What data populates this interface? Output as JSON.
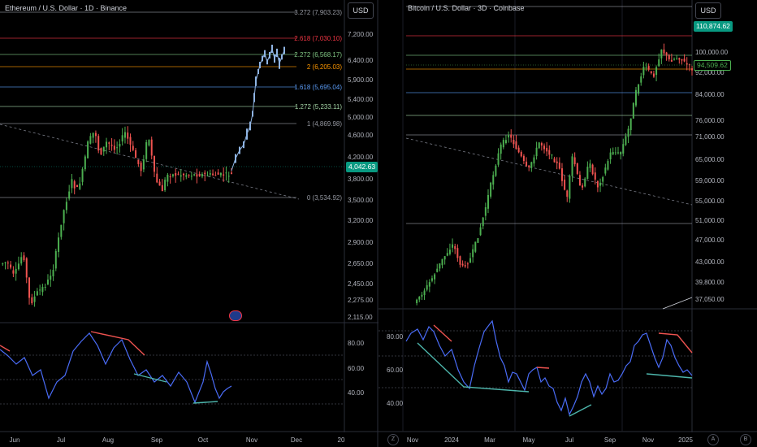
{
  "left": {
    "title": "Ethereum / U.S. Dollar · 1D · Binance",
    "currency": "USD",
    "price_axis": [
      "7,200.00",
      "6,400.00",
      "5,900.00",
      "5,400.00",
      "5,000.00",
      "4,600.00",
      "4,200.00",
      "3,800.00",
      "3,500.00",
      "3,200.00",
      "2,900.00",
      "2,650.00",
      "2,450.00",
      "2,275.00",
      "2,115.00"
    ],
    "fib_levels": [
      {
        "label": "3.272 (7,903.23)",
        "color": "#9598a1"
      },
      {
        "label": "2.618 (7,030.10)",
        "color": "#f23645"
      },
      {
        "label": "2.272 (6,568.17)",
        "color": "#81c784"
      },
      {
        "label": "2 (6,205.03)",
        "color": "#ff9800"
      },
      {
        "label": "1.618 (5,695.04)",
        "color": "#5b9cf6"
      },
      {
        "label": "1.272 (5,233.11)",
        "color": "#a5d6a7"
      },
      {
        "label": "1 (4,869.98)",
        "color": "#9598a1"
      },
      {
        "label": "0 (3,534.92)",
        "color": "#9598a1"
      }
    ],
    "current_price": "4,042.63",
    "rsi_axis": [
      "80.00",
      "60.00",
      "40.00"
    ],
    "time_axis": [
      "Jun",
      "Jul",
      "Aug",
      "Sep",
      "Oct",
      "Nov",
      "Dec",
      "20"
    ]
  },
  "right": {
    "title": "Bitcoin / U.S. Dollar · 3D · Coinbase",
    "currency": "USD",
    "price_axis": [
      "100,000.00",
      "92,000.00",
      "84,000.00",
      "76,000.00",
      "71,000.00",
      "65,000.00",
      "59,000.00",
      "55,000.00",
      "51,000.00",
      "47,000.00",
      "43,000.00",
      "39,800.00",
      "37,050.00"
    ],
    "current_price": "110,874.62",
    "secondary_price": "94,509.62",
    "rsi_axis": [
      "80.00",
      "60.00",
      "40.00"
    ],
    "time_axis": [
      "Nov",
      "2024",
      "Mar",
      "May",
      "Jul",
      "Sep",
      "Nov",
      "2025"
    ],
    "bottom_buttons": [
      "Z",
      "A",
      "B"
    ]
  },
  "colors": {
    "up": "#26a69a",
    "up_bright": "#4caf50",
    "down": "#ef5350",
    "projection": "#8fb4e3",
    "rsi": "#4a6cf7",
    "green_badge": "#089981"
  }
}
